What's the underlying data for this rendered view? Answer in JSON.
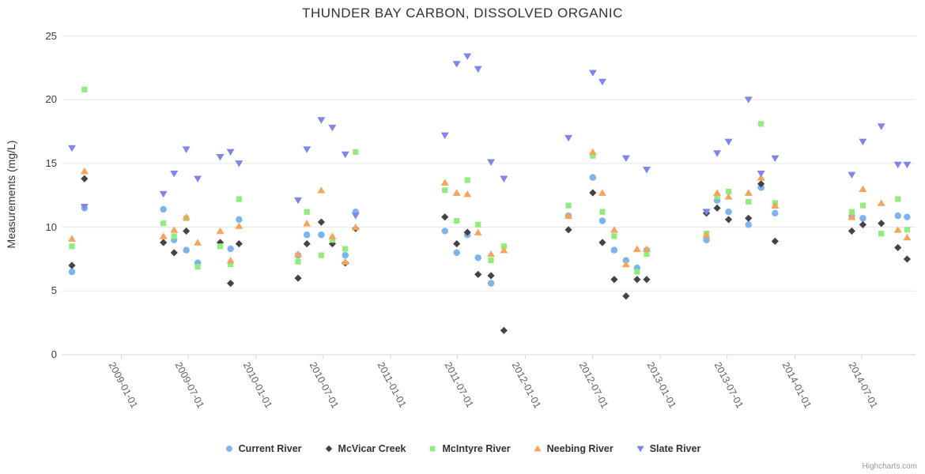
{
  "chart": {
    "credit": "Highcharts.com"
  },
  "chart_data": {
    "type": "scatter",
    "title": "THUNDER BAY CARBON, DISSOLVED ORGANIC",
    "xlabel": "",
    "ylabel": "Measurements (mg/L)",
    "ylim": [
      0,
      25
    ],
    "yticks": [
      0,
      5,
      10,
      15,
      20,
      25
    ],
    "xticks": [
      "2009-01-01",
      "2009-07-01",
      "2010-01-01",
      "2010-07-01",
      "2011-01-01",
      "2011-07-01",
      "2012-01-01",
      "2012-07-01",
      "2013-01-01",
      "2013-07-01",
      "2014-01-01",
      "2014-07-01"
    ],
    "grid": "horizontal-only",
    "legend_position": "bottom-center",
    "axis_line_color": "#ccd6eb",
    "grid_color": "#e6e6e6",
    "series": [
      {
        "name": "Current River",
        "color": "#7cb5ec",
        "marker": "circle",
        "data": [
          [
            "2008-08-20",
            6.5
          ],
          [
            "2008-09-23",
            11.5
          ],
          [
            "2009-04-25",
            11.4
          ],
          [
            "2009-05-24",
            9.0
          ],
          [
            "2009-06-26",
            8.2
          ],
          [
            "2009-07-27",
            7.2
          ],
          [
            "2009-10-24",
            8.3
          ],
          [
            "2009-11-16",
            10.6
          ],
          [
            "2010-04-25",
            7.8
          ],
          [
            "2010-05-19",
            9.4
          ],
          [
            "2010-06-27",
            9.4
          ],
          [
            "2010-08-31",
            7.8
          ],
          [
            "2010-09-28",
            11.2
          ],
          [
            "2011-05-28",
            9.7
          ],
          [
            "2011-06-29",
            8.0
          ],
          [
            "2011-07-28",
            9.4
          ],
          [
            "2011-08-26",
            7.6
          ],
          [
            "2011-09-30",
            5.6
          ],
          [
            "2012-04-27",
            10.9
          ],
          [
            "2012-07-02",
            13.9
          ],
          [
            "2012-07-28",
            10.5
          ],
          [
            "2012-08-29",
            8.2
          ],
          [
            "2012-09-30",
            7.4
          ],
          [
            "2012-10-30",
            6.8
          ],
          [
            "2012-11-25",
            8.2
          ],
          [
            "2013-05-06",
            9.0
          ],
          [
            "2013-06-04",
            12.1
          ],
          [
            "2013-07-05",
            11.2
          ],
          [
            "2013-08-28",
            10.2
          ],
          [
            "2013-10-01",
            13.1
          ],
          [
            "2013-11-08",
            11.1
          ],
          [
            "2014-06-04",
            10.9
          ],
          [
            "2014-07-04",
            10.7
          ],
          [
            "2014-10-07",
            10.9
          ],
          [
            "2014-11-01",
            10.8
          ]
        ]
      },
      {
        "name": "McVicar Creek",
        "color": "#434348",
        "marker": "diamond",
        "data": [
          [
            "2008-08-20",
            7.0
          ],
          [
            "2008-09-23",
            13.8
          ],
          [
            "2009-04-25",
            8.8
          ],
          [
            "2009-05-24",
            8.0
          ],
          [
            "2009-06-26",
            9.7
          ],
          [
            "2009-09-26",
            8.8
          ],
          [
            "2009-10-24",
            5.6
          ],
          [
            "2009-11-16",
            8.7
          ],
          [
            "2010-04-25",
            6.0
          ],
          [
            "2010-05-19",
            8.7
          ],
          [
            "2010-06-27",
            10.4
          ],
          [
            "2010-07-27",
            8.7
          ],
          [
            "2010-08-31",
            7.2
          ],
          [
            "2010-09-28",
            9.9
          ],
          [
            "2011-05-28",
            10.8
          ],
          [
            "2011-06-29",
            8.7
          ],
          [
            "2011-07-28",
            9.6
          ],
          [
            "2011-08-26",
            6.3
          ],
          [
            "2011-09-30",
            6.2
          ],
          [
            "2011-11-04",
            1.9
          ],
          [
            "2012-04-27",
            9.8
          ],
          [
            "2012-07-02",
            12.7
          ],
          [
            "2012-07-28",
            8.8
          ],
          [
            "2012-08-29",
            5.9
          ],
          [
            "2012-09-30",
            4.6
          ],
          [
            "2012-10-30",
            5.9
          ],
          [
            "2012-11-25",
            5.9
          ],
          [
            "2013-05-06",
            11.1
          ],
          [
            "2013-06-04",
            11.5
          ],
          [
            "2013-07-05",
            10.6
          ],
          [
            "2013-08-28",
            10.7
          ],
          [
            "2013-10-01",
            13.4
          ],
          [
            "2013-11-08",
            8.9
          ],
          [
            "2014-06-04",
            9.7
          ],
          [
            "2014-07-04",
            10.2
          ],
          [
            "2014-08-23",
            10.3
          ],
          [
            "2014-10-07",
            8.4
          ],
          [
            "2014-11-01",
            7.5
          ]
        ]
      },
      {
        "name": "McIntyre River",
        "color": "#90ed7d",
        "marker": "square",
        "data": [
          [
            "2008-08-20",
            8.5
          ],
          [
            "2008-09-23",
            20.8
          ],
          [
            "2009-04-25",
            10.3
          ],
          [
            "2009-05-24",
            9.3
          ],
          [
            "2009-06-26",
            10.7
          ],
          [
            "2009-07-27",
            6.9
          ],
          [
            "2009-09-26",
            8.5
          ],
          [
            "2009-10-24",
            7.1
          ],
          [
            "2009-11-16",
            12.2
          ],
          [
            "2010-04-25",
            7.3
          ],
          [
            "2010-05-19",
            11.2
          ],
          [
            "2010-06-27",
            7.8
          ],
          [
            "2010-07-27",
            9.0
          ],
          [
            "2010-08-31",
            8.3
          ],
          [
            "2010-09-28",
            15.9
          ],
          [
            "2011-05-28",
            12.9
          ],
          [
            "2011-06-29",
            10.5
          ],
          [
            "2011-07-28",
            13.7
          ],
          [
            "2011-08-26",
            10.2
          ],
          [
            "2011-09-30",
            7.4
          ],
          [
            "2011-11-04",
            8.5
          ],
          [
            "2012-04-27",
            11.7
          ],
          [
            "2012-07-02",
            15.6
          ],
          [
            "2012-07-28",
            11.2
          ],
          [
            "2012-08-29",
            9.3
          ],
          [
            "2012-10-30",
            6.5
          ],
          [
            "2012-11-25",
            7.9
          ],
          [
            "2013-05-06",
            9.5
          ],
          [
            "2013-06-04",
            12.4
          ],
          [
            "2013-07-05",
            12.8
          ],
          [
            "2013-08-28",
            12.0
          ],
          [
            "2013-10-01",
            18.1
          ],
          [
            "2013-11-08",
            11.9
          ],
          [
            "2014-06-04",
            11.2
          ],
          [
            "2014-07-04",
            11.7
          ],
          [
            "2014-08-23",
            9.5
          ],
          [
            "2014-10-07",
            12.2
          ],
          [
            "2014-11-01",
            9.8
          ]
        ]
      },
      {
        "name": "Neebing River",
        "color": "#f7a35c",
        "marker": "triangle",
        "data": [
          [
            "2008-08-20",
            9.1
          ],
          [
            "2008-09-23",
            14.4
          ],
          [
            "2009-04-25",
            9.3
          ],
          [
            "2009-05-24",
            9.8
          ],
          [
            "2009-06-26",
            10.8
          ],
          [
            "2009-07-27",
            8.8
          ],
          [
            "2009-09-26",
            9.7
          ],
          [
            "2009-10-24",
            7.4
          ],
          [
            "2009-11-16",
            10.1
          ],
          [
            "2010-04-25",
            7.9
          ],
          [
            "2010-05-19",
            10.3
          ],
          [
            "2010-06-27",
            12.9
          ],
          [
            "2010-07-27",
            9.3
          ],
          [
            "2010-08-31",
            7.3
          ],
          [
            "2010-09-28",
            10.0
          ],
          [
            "2011-05-28",
            13.5
          ],
          [
            "2011-06-29",
            12.7
          ],
          [
            "2011-07-28",
            12.6
          ],
          [
            "2011-08-26",
            9.6
          ],
          [
            "2011-09-30",
            7.9
          ],
          [
            "2011-11-04",
            8.2
          ],
          [
            "2012-04-27",
            10.9
          ],
          [
            "2012-07-02",
            15.9
          ],
          [
            "2012-07-28",
            12.7
          ],
          [
            "2012-08-29",
            9.8
          ],
          [
            "2012-09-30",
            7.1
          ],
          [
            "2012-10-30",
            8.3
          ],
          [
            "2012-11-25",
            8.3
          ],
          [
            "2013-05-06",
            9.4
          ],
          [
            "2013-06-04",
            12.7
          ],
          [
            "2013-07-05",
            12.4
          ],
          [
            "2013-08-28",
            12.7
          ],
          [
            "2013-10-01",
            13.9
          ],
          [
            "2013-11-08",
            11.7
          ],
          [
            "2014-06-04",
            10.8
          ],
          [
            "2014-07-04",
            13.0
          ],
          [
            "2014-08-23",
            11.9
          ],
          [
            "2014-10-07",
            9.8
          ],
          [
            "2014-11-01",
            9.2
          ]
        ]
      },
      {
        "name": "Slate River",
        "color": "#8085e9",
        "marker": "triangle-down",
        "data": [
          [
            "2008-08-20",
            16.2
          ],
          [
            "2008-09-23",
            11.6
          ],
          [
            "2009-04-25",
            12.6
          ],
          [
            "2009-05-24",
            14.2
          ],
          [
            "2009-06-26",
            16.1
          ],
          [
            "2009-07-27",
            13.8
          ],
          [
            "2009-09-26",
            15.5
          ],
          [
            "2009-10-24",
            15.9
          ],
          [
            "2009-11-16",
            15.0
          ],
          [
            "2010-04-25",
            12.1
          ],
          [
            "2010-05-19",
            16.1
          ],
          [
            "2010-06-27",
            18.4
          ],
          [
            "2010-07-27",
            17.8
          ],
          [
            "2010-08-31",
            15.7
          ],
          [
            "2010-09-28",
            10.9
          ],
          [
            "2011-05-28",
            17.2
          ],
          [
            "2011-06-29",
            22.8
          ],
          [
            "2011-07-28",
            23.4
          ],
          [
            "2011-08-26",
            22.4
          ],
          [
            "2011-09-30",
            15.1
          ],
          [
            "2011-11-04",
            13.8
          ],
          [
            "2012-04-27",
            17.0
          ],
          [
            "2012-07-02",
            22.1
          ],
          [
            "2012-07-28",
            21.4
          ],
          [
            "2012-09-30",
            15.4
          ],
          [
            "2012-11-25",
            14.5
          ],
          [
            "2013-05-06",
            11.2
          ],
          [
            "2013-06-04",
            15.8
          ],
          [
            "2013-07-05",
            16.7
          ],
          [
            "2013-08-28",
            20.0
          ],
          [
            "2013-10-01",
            14.2
          ],
          [
            "2013-11-08",
            15.4
          ],
          [
            "2014-06-04",
            14.1
          ],
          [
            "2014-07-04",
            16.7
          ],
          [
            "2014-08-23",
            17.9
          ],
          [
            "2014-10-07",
            14.9
          ],
          [
            "2014-11-01",
            14.9
          ]
        ]
      }
    ]
  }
}
